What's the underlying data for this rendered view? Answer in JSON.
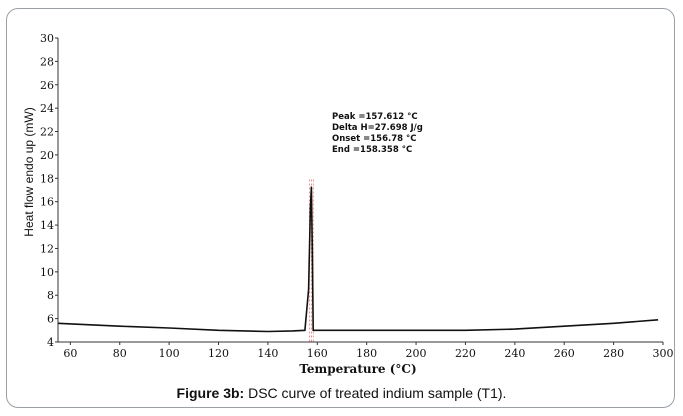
{
  "chart_data": {
    "type": "line",
    "xlabel": "Temperature (°C)",
    "ylabel": "Heat flow endo up (mW)",
    "xlim": [
      55,
      300
    ],
    "ylim": [
      4,
      30
    ],
    "x_ticks": [
      60,
      80,
      100,
      120,
      140,
      160,
      180,
      200,
      220,
      240,
      260,
      280,
      300
    ],
    "y_ticks": [
      4,
      6,
      8,
      10,
      12,
      14,
      16,
      18,
      20,
      22,
      24,
      26,
      28,
      30
    ],
    "grid": false,
    "series": [
      {
        "x": [
          55,
          80,
          100,
          120,
          140,
          150,
          155,
          156.5,
          157.2,
          157.612,
          158.0,
          158.36,
          160,
          180,
          200,
          220,
          240,
          260,
          280,
          298
        ],
        "y": [
          5.6,
          5.35,
          5.2,
          5.0,
          4.9,
          4.95,
          5.0,
          8.5,
          15.5,
          17.3,
          12.0,
          5.0,
          5.0,
          5.0,
          5.0,
          5.0,
          5.1,
          5.35,
          5.6,
          5.9
        ]
      }
    ],
    "annotations": [
      "Peak =157.612 °C",
      "Delta H=27.698 J/g",
      "Onset =156.78 °C",
      "End =158.358 °C"
    ]
  },
  "caption": {
    "label": "Figure 3b:",
    "text": " DSC curve of treated indium sample (T1)."
  },
  "colors": {
    "curve": "#111111",
    "axis": "#333333",
    "marker": "#d9534f"
  }
}
